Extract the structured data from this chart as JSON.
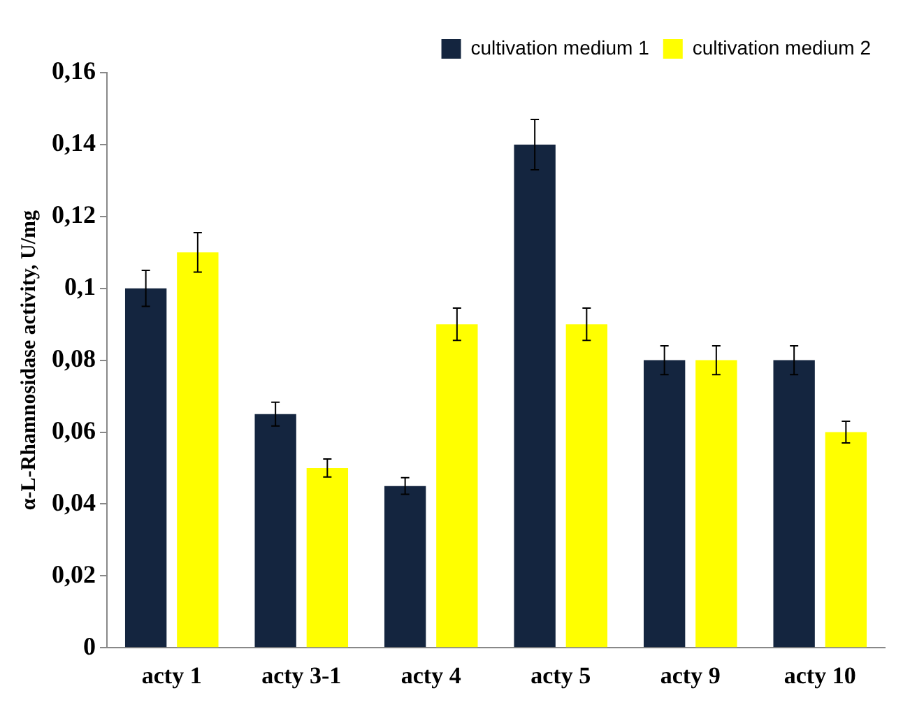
{
  "chart_data": {
    "type": "bar",
    "ylabel": "α-L-Rhamnosidase activity, U/mg",
    "categories": [
      "acty 1",
      "acty 3-1",
      "acty 4",
      "acty 5",
      "acty 9",
      "acty 10"
    ],
    "series": [
      {
        "name": "cultivation medium 1",
        "color": "#14253f",
        "values": [
          0.1,
          0.065,
          0.045,
          0.14,
          0.08,
          0.08
        ],
        "errors": [
          0.005,
          0.0033,
          0.0023,
          0.007,
          0.004,
          0.004
        ]
      },
      {
        "name": "cultivation medium 2",
        "color": "#ffff00",
        "values": [
          0.11,
          0.05,
          0.09,
          0.09,
          0.08,
          0.06
        ],
        "errors": [
          0.0055,
          0.0025,
          0.0045,
          0.0045,
          0.004,
          0.003
        ]
      }
    ],
    "ylim": [
      0,
      0.16
    ],
    "yticks": [
      0,
      {
        "value": 0.02,
        "label": "0,02"
      },
      {
        "value": 0.04,
        "label": "0,04"
      },
      {
        "value": 0.06,
        "label": "0,06"
      },
      {
        "value": 0.08,
        "label": "0,08"
      },
      {
        "value": 0.1,
        "label": "0,1"
      },
      {
        "value": 0.12,
        "label": "0,12"
      },
      {
        "value": 0.14,
        "label": "0,14"
      },
      {
        "value": 0.16,
        "label": "0,16"
      }
    ],
    "grid": false,
    "legend": "top right"
  }
}
